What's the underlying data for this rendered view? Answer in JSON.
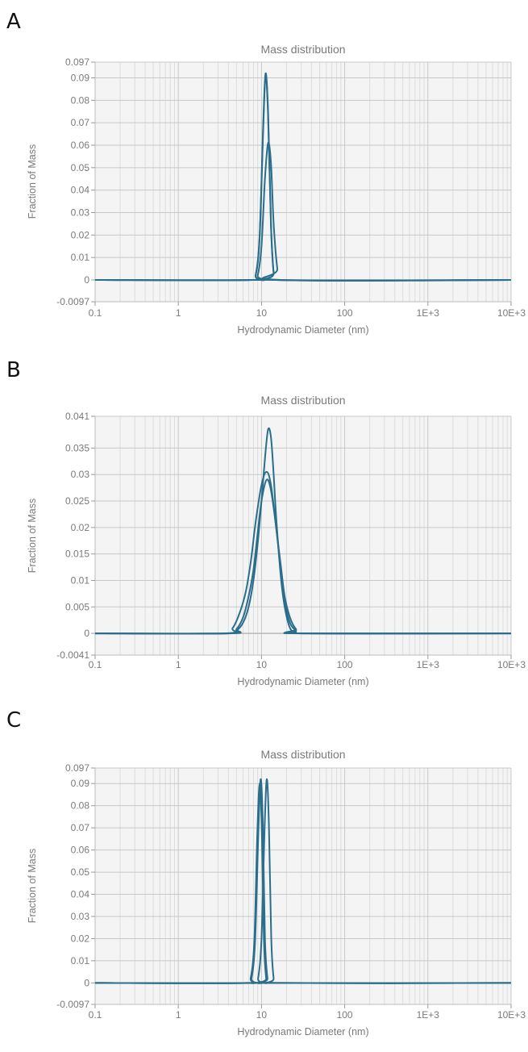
{
  "panels": [
    {
      "letter": "A"
    },
    {
      "letter": "B"
    },
    {
      "letter": "C"
    }
  ],
  "colors": {
    "series": "#2a6e8c",
    "grid_major": "#c8c8c8",
    "grid_minor": "#dcdcdc",
    "plot_bg": "#f4f4f4",
    "zero_line": "#b8b8b8",
    "text": "#7a7a7a"
  },
  "chart_data": [
    {
      "type": "line",
      "title": "Mass distribution",
      "xlabel": "Hydrodynamic Diameter (nm)",
      "ylabel": "Fraction of Mass",
      "xscale": "log",
      "xlim": [
        0.1,
        10000
      ],
      "xticks": [
        0.1,
        1,
        10,
        100,
        1000,
        10000
      ],
      "xtick_labels": [
        "0.1",
        "1",
        "10",
        "100",
        "1E+3",
        "10E+3"
      ],
      "ylim": [
        -0.0097,
        0.097
      ],
      "yticks": [
        -0.0097,
        0,
        0.01,
        0.02,
        0.03,
        0.04,
        0.05,
        0.06,
        0.07,
        0.08,
        0.09,
        0.097
      ],
      "ytick_labels": [
        "-0.0097",
        "0",
        "0.01",
        "0.02",
        "0.03",
        "0.04",
        "0.05",
        "0.06",
        "0.07",
        "0.08",
        "0.09",
        "0.097"
      ],
      "grid": true,
      "series": [
        {
          "x": [
            0.1,
            7.5,
            8.5,
            9.5,
            10.5,
            11.2,
            12,
            13,
            14,
            15,
            10000
          ],
          "y": [
            0,
            0,
            0.002,
            0.02,
            0.07,
            0.092,
            0.075,
            0.025,
            0.003,
            0,
            0
          ]
        },
        {
          "x": [
            0.1,
            7.5,
            8.5,
            9.5,
            10.5,
            11.2,
            12,
            13,
            14,
            15,
            10000
          ],
          "y": [
            0,
            0,
            0.002,
            0.019,
            0.068,
            0.091,
            0.073,
            0.024,
            0.003,
            0,
            0
          ]
        },
        {
          "x": [
            0.1,
            8,
            9,
            10,
            11,
            12,
            13,
            14,
            15.5,
            17,
            10000
          ],
          "y": [
            0,
            0,
            0.002,
            0.015,
            0.045,
            0.061,
            0.052,
            0.025,
            0.005,
            0,
            0
          ]
        }
      ]
    },
    {
      "type": "line",
      "title": "Mass distribution",
      "xlabel": "Hydrodynamic Diameter (nm)",
      "ylabel": "Fraction of Mass",
      "xscale": "log",
      "xlim": [
        0.1,
        10000
      ],
      "xticks": [
        0.1,
        1,
        10,
        100,
        1000,
        10000
      ],
      "xtick_labels": [
        "0.1",
        "1",
        "10",
        "100",
        "1E+3",
        "10E+3"
      ],
      "ylim": [
        -0.0041,
        0.041
      ],
      "yticks": [
        -0.0041,
        0,
        0.005,
        0.01,
        0.015,
        0.02,
        0.025,
        0.03,
        0.035,
        0.041
      ],
      "ytick_labels": [
        "-0.0041",
        "0",
        "0.005",
        "0.01",
        "0.015",
        "0.02",
        "0.025",
        "0.03",
        "0.035",
        "0.041"
      ],
      "grid": true,
      "series": [
        {
          "x": [
            0.1,
            4,
            5,
            6,
            7,
            8,
            9,
            10,
            11,
            12,
            13,
            14,
            15,
            17,
            19,
            22,
            26,
            30,
            10000
          ],
          "y": [
            0,
            0,
            0.0005,
            0.002,
            0.005,
            0.01,
            0.017,
            0.025,
            0.033,
            0.0385,
            0.037,
            0.03,
            0.022,
            0.011,
            0.005,
            0.001,
            0.0002,
            0,
            0
          ]
        },
        {
          "x": [
            0.1,
            3.5,
            4.5,
            5.5,
            6.5,
            7.5,
            8.5,
            10,
            11.5,
            13,
            15,
            17,
            19,
            22,
            26,
            32,
            10000
          ],
          "y": [
            0,
            0,
            0.001,
            0.004,
            0.008,
            0.014,
            0.021,
            0.028,
            0.0305,
            0.028,
            0.02,
            0.013,
            0.007,
            0.003,
            0.0008,
            0,
            0
          ]
        },
        {
          "x": [
            0.1,
            4,
            5,
            6,
            7,
            8,
            9,
            10,
            11.5,
            13,
            15,
            17,
            19,
            22,
            26,
            30,
            10000
          ],
          "y": [
            0,
            0,
            0.0008,
            0.003,
            0.007,
            0.012,
            0.019,
            0.025,
            0.029,
            0.027,
            0.02,
            0.012,
            0.006,
            0.002,
            0.0005,
            0,
            0
          ]
        }
      ]
    },
    {
      "type": "line",
      "title": "Mass distribution",
      "xlabel": "Hydrodynamic Diameter (nm)",
      "ylabel": "Fraction of Mass",
      "xscale": "log",
      "xlim": [
        0.1,
        10000
      ],
      "xticks": [
        0.1,
        1,
        10,
        100,
        1000,
        10000
      ],
      "xtick_labels": [
        "0.1",
        "1",
        "10",
        "100",
        "1E+3",
        "10E+3"
      ],
      "ylim": [
        -0.0097,
        0.097
      ],
      "yticks": [
        -0.0097,
        0,
        0.01,
        0.02,
        0.03,
        0.04,
        0.05,
        0.06,
        0.07,
        0.08,
        0.09,
        0.097
      ],
      "ytick_labels": [
        "-0.0097",
        "0",
        "0.01",
        "0.02",
        "0.03",
        "0.04",
        "0.05",
        "0.06",
        "0.07",
        "0.08",
        "0.09",
        "0.097"
      ],
      "grid": true,
      "series": [
        {
          "x": [
            0.1,
            6.8,
            7.6,
            8.4,
            9.2,
            9.8,
            10.4,
            11,
            11.8,
            12.6,
            10000
          ],
          "y": [
            0,
            0,
            0.002,
            0.02,
            0.07,
            0.092,
            0.07,
            0.02,
            0.002,
            0,
            0
          ]
        },
        {
          "x": [
            0.1,
            6.6,
            7.4,
            8.2,
            8.9,
            9.5,
            10.1,
            10.7,
            11.4,
            12.2,
            10000
          ],
          "y": [
            0,
            0,
            0.002,
            0.019,
            0.067,
            0.09,
            0.068,
            0.019,
            0.002,
            0,
            0
          ]
        },
        {
          "x": [
            0.1,
            8.2,
            9.1,
            10,
            10.9,
            11.6,
            12.3,
            13.1,
            14,
            15,
            10000
          ],
          "y": [
            0,
            0,
            0.002,
            0.02,
            0.07,
            0.092,
            0.07,
            0.02,
            0.002,
            0,
            0
          ]
        }
      ]
    }
  ]
}
